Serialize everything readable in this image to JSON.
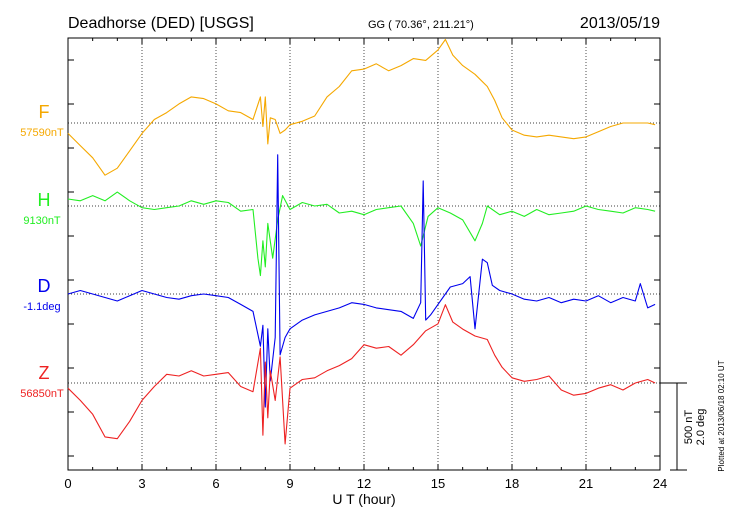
{
  "header": {
    "station": "Deadhorse (DED)  [USGS]",
    "coords": "GG ( 70.36°, 211.21°)",
    "date": "2013/05/19"
  },
  "plotted_note": "Plotted at 2013/06/18 02:10 UT",
  "scale_bar": {
    "line1": "500 nT",
    "line2": "2.0 deg"
  },
  "chart_data": {
    "type": "line",
    "xlabel": "U T (hour)",
    "ylabel": "",
    "xlim": [
      0,
      24
    ],
    "xticks": [
      "0",
      "3",
      "6",
      "9",
      "12",
      "15",
      "18",
      "21",
      "24"
    ],
    "grid": true,
    "series": [
      {
        "name": "F",
        "baseline_label": "57590nT",
        "color": "#f5a800",
        "x": [
          0,
          0.5,
          1,
          1.5,
          2,
          2.5,
          3,
          3.5,
          4,
          4.5,
          5,
          5.5,
          6,
          6.5,
          7,
          7.5,
          7.8,
          7.9,
          8,
          8.1,
          8.2,
          8.4,
          8.6,
          8.8,
          9,
          9.5,
          10,
          10.5,
          11,
          11.5,
          12,
          12.5,
          13,
          13.5,
          14,
          14.5,
          15,
          15.3,
          15.6,
          16,
          16.5,
          17,
          17.3,
          17.6,
          18,
          18.5,
          19,
          19.5,
          20,
          20.5,
          21,
          21.5,
          22,
          22.5,
          23,
          23.5,
          23.8
        ],
        "y": [
          -60,
          -130,
          -200,
          -300,
          -260,
          -160,
          -60,
          20,
          60,
          110,
          150,
          140,
          110,
          70,
          60,
          20,
          150,
          -20,
          150,
          -120,
          30,
          20,
          -60,
          -40,
          -10,
          10,
          40,
          150,
          210,
          300,
          310,
          340,
          300,
          330,
          370,
          360,
          420,
          480,
          390,
          330,
          280,
          210,
          130,
          30,
          -40,
          -70,
          -80,
          -70,
          -80,
          -90,
          -80,
          -50,
          -20,
          0,
          0,
          0,
          -10
        ]
      },
      {
        "name": "H",
        "baseline_label": "9130nT",
        "color": "#22ee22",
        "x": [
          0,
          0.5,
          1,
          1.5,
          2,
          2.5,
          3,
          3.5,
          4,
          4.5,
          5,
          5.5,
          6,
          6.5,
          7,
          7.5,
          7.7,
          7.8,
          7.9,
          8,
          8.1,
          8.3,
          8.5,
          8.7,
          9,
          9.5,
          10,
          10.5,
          11,
          11.5,
          12,
          12.5,
          13,
          13.5,
          14,
          14.3,
          14.6,
          15,
          15.5,
          16,
          16.5,
          16.8,
          17,
          17.5,
          18,
          18.5,
          19,
          19.5,
          20,
          20.5,
          21,
          21.5,
          22,
          22.5,
          23,
          23.5,
          23.8
        ],
        "y": [
          40,
          30,
          60,
          30,
          80,
          30,
          -10,
          -20,
          -10,
          0,
          30,
          10,
          30,
          20,
          -30,
          -20,
          -300,
          -400,
          -200,
          -350,
          -100,
          -300,
          -80,
          60,
          -20,
          20,
          0,
          10,
          -40,
          -30,
          -50,
          -20,
          -10,
          0,
          -100,
          -230,
          -60,
          -10,
          -40,
          -80,
          -200,
          -100,
          0,
          -50,
          -30,
          -60,
          -20,
          -50,
          -40,
          -30,
          0,
          -20,
          -30,
          -40,
          -10,
          -20,
          -30
        ]
      },
      {
        "name": "D",
        "baseline_label": "-1.1deg",
        "color": "#0000ee",
        "x": [
          0,
          0.5,
          1,
          1.5,
          2,
          2.5,
          3,
          3.5,
          4,
          4.5,
          5,
          5.5,
          6,
          6.5,
          7,
          7.5,
          7.8,
          7.9,
          8,
          8.1,
          8.2,
          8.4,
          8.5,
          8.6,
          8.8,
          9,
          9.5,
          10,
          10.5,
          11,
          11.5,
          12,
          12.5,
          13,
          13.5,
          14,
          14.3,
          14.4,
          14.5,
          14.7,
          15,
          15.5,
          16,
          16.3,
          16.5,
          16.8,
          17,
          17.2,
          17.5,
          18,
          18.5,
          19,
          19.5,
          20,
          20.5,
          21,
          21.5,
          22,
          22.5,
          23,
          23.2,
          23.5,
          23.8
        ],
        "y": [
          0,
          20,
          0,
          -20,
          -40,
          -10,
          20,
          0,
          -20,
          -30,
          -10,
          0,
          -10,
          -20,
          -60,
          -100,
          -300,
          -180,
          -650,
          -200,
          -500,
          -250,
          800,
          -350,
          -250,
          -200,
          -150,
          -120,
          -100,
          -80,
          -50,
          -60,
          -80,
          -90,
          -100,
          -140,
          -50,
          650,
          -150,
          -120,
          -60,
          40,
          60,
          100,
          -200,
          200,
          180,
          50,
          20,
          0,
          -30,
          -40,
          -20,
          -50,
          -30,
          -40,
          -10,
          -50,
          -20,
          -40,
          60,
          -80,
          -60
        ]
      },
      {
        "name": "Z",
        "baseline_label": "56850nT",
        "color": "#ee2222",
        "x": [
          0,
          0.5,
          1,
          1.5,
          2,
          2.5,
          3,
          3.5,
          4,
          4.5,
          5,
          5.5,
          6,
          6.5,
          7,
          7.5,
          7.8,
          7.9,
          8,
          8.1,
          8.2,
          8.4,
          8.6,
          8.8,
          9,
          9.5,
          10,
          10.5,
          11,
          11.5,
          12,
          12.5,
          13,
          13.5,
          14,
          14.5,
          15,
          15.3,
          15.6,
          16,
          16.5,
          17,
          17.3,
          17.6,
          18,
          18.5,
          19,
          19.5,
          20,
          20.5,
          21,
          21.5,
          22,
          22.5,
          23,
          23.5,
          23.8
        ],
        "y": [
          -30,
          -100,
          -180,
          -310,
          -320,
          -220,
          -100,
          -20,
          50,
          40,
          70,
          40,
          50,
          60,
          -20,
          -50,
          200,
          -300,
          120,
          -200,
          70,
          -100,
          150,
          -350,
          -30,
          20,
          30,
          70,
          100,
          140,
          220,
          200,
          210,
          160,
          220,
          300,
          340,
          450,
          350,
          310,
          270,
          250,
          160,
          90,
          30,
          10,
          20,
          40,
          -40,
          -70,
          -60,
          -30,
          -10,
          -40,
          0,
          20,
          0
        ]
      }
    ]
  }
}
